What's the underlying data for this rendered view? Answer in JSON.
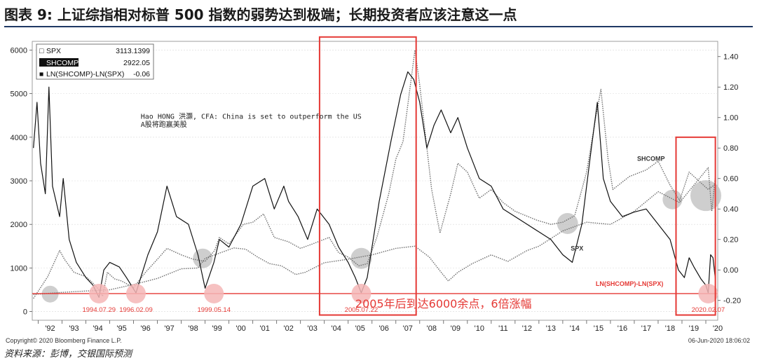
{
  "title": "图表 9: 上证综指相对标普 500 指数的弱势达到极端；长期投资者应该注意这一点",
  "source": "资料来源：彭博，交银国际预测",
  "colors": {
    "title_rule": "#1f3864",
    "highlight_red": "#e53935",
    "circle_pink": "#f4b6b6",
    "circle_grey": "#bdbdbd"
  },
  "chart_data": {
    "type": "line",
    "legend": [
      {
        "marker": "□",
        "name": "SPX",
        "value": "3113.1399"
      },
      {
        "marker": "□",
        "name": "SHCOMP",
        "value": "2922.05"
      },
      {
        "marker": "■",
        "name": "LN(SHCOMP)-LN(SPX)",
        "value": "-0.06"
      }
    ],
    "left_axis": {
      "ticks": [
        0,
        1000,
        2000,
        3000,
        4000,
        5000,
        6000
      ],
      "ylim": [
        -200,
        6200
      ]
    },
    "right_axis": {
      "ticks": [
        "-0.20",
        "0.00",
        "0.20",
        "0.40",
        "0.60",
        "0.80",
        "1.00",
        "1.20",
        "1.40"
      ],
      "ylim": [
        -0.33,
        1.5
      ]
    },
    "x_ticks": [
      "'92",
      "'93",
      "'94",
      "'95",
      "'96",
      "'97",
      "'98",
      "'99",
      "'00",
      "'01",
      "'02",
      "'03",
      "'04",
      "'05",
      "'06",
      "'07",
      "'08",
      "'09",
      "'10",
      "'11",
      "'12",
      "'13",
      "'14",
      "'15",
      "'16",
      "'17",
      "'18",
      "'19",
      "'20"
    ],
    "xlim": [
      1991.75,
      2020.5
    ],
    "series": [
      {
        "name": "SHCOMP",
        "axis": "left",
        "style": "dotted",
        "x": [
          1991.8,
          1992.4,
          1992.9,
          1993.1,
          1993.5,
          1994.0,
          1994.3,
          1994.55,
          1994.7,
          1994.9,
          1995.2,
          1995.5,
          1996.0,
          1996.5,
          1997.0,
          1997.4,
          1998.0,
          1998.5,
          1999.0,
          1999.4,
          1999.6,
          2000.0,
          2000.6,
          2001.0,
          2001.45,
          2001.9,
          2002.5,
          2003.0,
          2003.5,
          2004.2,
          2004.6,
          2005.0,
          2005.45,
          2005.8,
          2006.2,
          2006.7,
          2007.0,
          2007.3,
          2007.8,
          2008.0,
          2008.5,
          2008.85,
          2009.3,
          2009.6,
          2010.0,
          2010.5,
          2011.0,
          2011.5,
          2012.0,
          2012.9,
          2013.5,
          2014.0,
          2014.5,
          2015.0,
          2015.4,
          2015.6,
          2015.9,
          2016.1,
          2016.8,
          2017.5,
          2018.0,
          2018.5,
          2018.9,
          2019.3,
          2019.8,
          2020.1,
          2020.4
        ],
        "values": [
          300,
          800,
          1400,
          1200,
          900,
          800,
          650,
          500,
          350,
          900,
          750,
          700,
          550,
          900,
          1200,
          1450,
          1300,
          1200,
          1150,
          1400,
          1700,
          1550,
          2000,
          2050,
          2240,
          1700,
          1600,
          1450,
          1550,
          1700,
          1350,
          1250,
          1050,
          1100,
          1700,
          2700,
          3500,
          3900,
          6000,
          5200,
          2800,
          1800,
          2700,
          3400,
          3200,
          2600,
          2800,
          2500,
          2300,
          2100,
          2000,
          2050,
          2200,
          3200,
          4500,
          5100,
          3500,
          2800,
          3100,
          3250,
          3450,
          2900,
          2550,
          3200,
          2950,
          2800,
          2922
        ]
      },
      {
        "name": "SPX",
        "axis": "left",
        "style": "dotted",
        "x": [
          1991.8,
          1993.0,
          1994.0,
          1995.0,
          1996.0,
          1997.0,
          1998.0,
          1998.7,
          1999.0,
          2000.2,
          2000.7,
          2001.2,
          2001.7,
          2002.2,
          2002.8,
          2003.2,
          2004.0,
          2005.0,
          2006.0,
          2007.0,
          2007.8,
          2008.4,
          2008.9,
          2009.2,
          2009.6,
          2010.2,
          2011.0,
          2011.7,
          2012.5,
          2013.0,
          2014.0,
          2015.0,
          2016.0,
          2017.0,
          2018.0,
          2018.9,
          2019.5,
          2020.1,
          2020.25,
          2020.4
        ],
        "values": [
          390,
          440,
          470,
          500,
          620,
          760,
          980,
          1000,
          1220,
          1460,
          1430,
          1250,
          1100,
          1050,
          850,
          900,
          1120,
          1200,
          1300,
          1450,
          1500,
          1250,
          900,
          700,
          900,
          1100,
          1300,
          1150,
          1400,
          1500,
          1850,
          2050,
          2000,
          2300,
          2750,
          2500,
          2900,
          3300,
          2300,
          3113
        ]
      },
      {
        "name": "LN(SHCOMP)-LN(SPX)",
        "axis": "right",
        "style": "solid",
        "x": [
          1991.8,
          1991.95,
          1992.1,
          1992.3,
          1992.45,
          1992.6,
          1992.9,
          1993.05,
          1993.3,
          1993.6,
          1994.0,
          1994.3,
          1994.55,
          1994.75,
          1995.0,
          1995.4,
          1995.7,
          1996.1,
          1996.6,
          1997.0,
          1997.4,
          1997.8,
          1998.3,
          1998.7,
          1999.0,
          1999.37,
          1999.6,
          2000.0,
          2000.5,
          2001.0,
          2001.5,
          2001.9,
          2002.3,
          2002.5,
          2002.9,
          2003.3,
          2003.7,
          2004.2,
          2004.6,
          2005.0,
          2005.3,
          2005.55,
          2005.8,
          2006.3,
          2006.8,
          2007.2,
          2007.5,
          2007.75,
          2008.0,
          2008.3,
          2008.6,
          2008.9,
          2009.3,
          2009.6,
          2010.0,
          2010.5,
          2011.0,
          2011.5,
          2012.0,
          2012.5,
          2013.0,
          2013.5,
          2014.0,
          2014.4,
          2014.8,
          2015.2,
          2015.45,
          2015.7,
          2016.0,
          2016.5,
          2017.0,
          2017.5,
          2018.0,
          2018.5,
          2018.85,
          2019.1,
          2019.3,
          2019.5,
          2019.8,
          2020.0,
          2020.1,
          2020.2,
          2020.3,
          2020.4
        ],
        "values": [
          0.8,
          1.1,
          0.7,
          0.5,
          1.2,
          0.55,
          0.35,
          0.6,
          0.2,
          0.05,
          -0.05,
          -0.1,
          -0.18,
          0.0,
          0.05,
          0.02,
          -0.05,
          -0.15,
          0.1,
          0.25,
          0.55,
          0.35,
          0.3,
          0.1,
          -0.12,
          0.05,
          0.2,
          0.15,
          0.3,
          0.55,
          0.6,
          0.4,
          0.55,
          0.45,
          0.35,
          0.2,
          0.4,
          0.3,
          0.15,
          0.05,
          -0.05,
          -0.15,
          -0.05,
          0.45,
          0.85,
          1.15,
          1.3,
          1.25,
          1.1,
          0.8,
          0.95,
          1.05,
          0.9,
          1.0,
          0.8,
          0.6,
          0.55,
          0.4,
          0.35,
          0.3,
          0.25,
          0.2,
          0.1,
          0.05,
          0.3,
          0.8,
          1.1,
          0.6,
          0.45,
          0.35,
          0.38,
          0.4,
          0.3,
          0.2,
          0.0,
          -0.05,
          0.08,
          0.02,
          -0.06,
          -0.1,
          -0.15,
          0.1,
          0.08,
          -0.06
        ]
      }
    ],
    "reference_line": {
      "name": "LN(SHCOMP)-LN(SPX)",
      "axis": "right",
      "value": -0.155
    },
    "series_labels": [
      {
        "text": "SHCOMP",
        "x": 2017.7,
        "axis": "left",
        "y": 3460
      },
      {
        "text": "SPX",
        "x": 2014.6,
        "axis": "left",
        "y": 1400
      },
      {
        "text": "LN(SHCOMP)-LN(SPX)",
        "x": 2016.8,
        "axis": "right",
        "y": -0.105
      }
    ],
    "note": {
      "text_line1": "Hao HONG 洪灝, CFA: China is set to outperform the US",
      "text_line2": "A股将跑赢美股",
      "x": 1996.3,
      "axis": "left",
      "y1": 4420,
      "y2": 4240
    },
    "red_circles": [
      {
        "date": "1994.07.29",
        "x": 1994.55,
        "axis": "right",
        "y": -0.155
      },
      {
        "date": "1996.02.09",
        "x": 1996.1,
        "axis": "right",
        "y": -0.155
      },
      {
        "date": "1999.05.14",
        "x": 1999.37,
        "axis": "right",
        "y": -0.155
      },
      {
        "date": "2005.07.22",
        "x": 2005.55,
        "axis": "right",
        "y": -0.155
      },
      {
        "date": "2020.02.07",
        "x": 2020.1,
        "axis": "right",
        "y": -0.155
      }
    ],
    "grey_circles": [
      {
        "x": 1992.5,
        "axis": "left",
        "y": 400,
        "r": 12
      },
      {
        "x": 1998.9,
        "axis": "left",
        "y": 1220,
        "r": 14
      },
      {
        "x": 2005.55,
        "axis": "left",
        "y": 1220,
        "r": 15
      },
      {
        "x": 2014.2,
        "axis": "left",
        "y": 2020,
        "r": 15
      },
      {
        "x": 2018.6,
        "axis": "left",
        "y": 2570,
        "r": 14
      },
      {
        "x": 2020.0,
        "axis": "left",
        "y": 2660,
        "r": 22
      }
    ],
    "boxes": [
      {
        "x0": 2003.8,
        "x1": 2007.85,
        "y_top": 6300,
        "y_bottom": -80,
        "axis": "left"
      },
      {
        "x0": 2018.75,
        "x1": 2020.4,
        "y_top": 4000,
        "y_bottom": -80,
        "axis": "left"
      }
    ],
    "annotation": {
      "text": "2005年后到达6000余点，6倍涨幅",
      "x": 2005.3,
      "axis": "left",
      "y": 90
    },
    "copyright": "Copyright© 2020 Bloomberg Finance L.P.",
    "timestamp": "06-Jun-2020 18:06:02"
  }
}
